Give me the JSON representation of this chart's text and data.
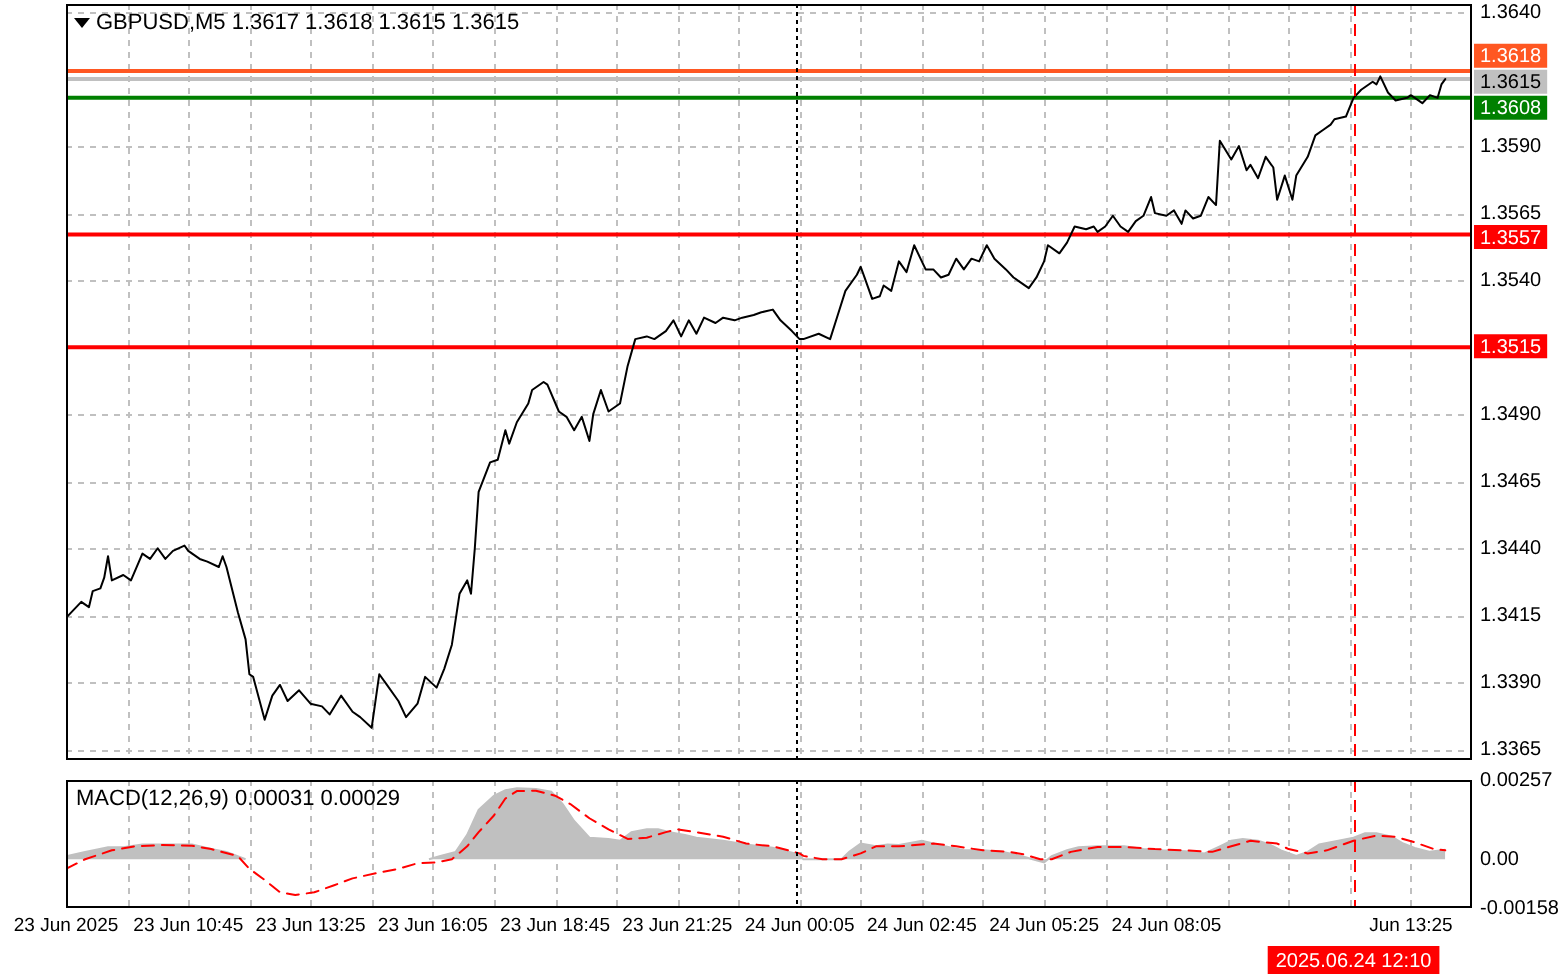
{
  "chart_data": [
    {
      "type": "line",
      "title": "GBPUSD,M5 1.3617 1.3618 1.3615 1.3615",
      "xlim": [
        "2025-06-23T08:05",
        "2025-06-24T14:45"
      ],
      "xticks": [
        {
          "value": "2025-06-23T08:05",
          "label": null
        },
        {
          "value": "2025-06-23T09:25",
          "label": null
        },
        {
          "value": "2025-06-23T10:45",
          "label": null
        },
        {
          "value": "2025-06-23T12:05",
          "label": null
        },
        {
          "value": "2025-06-23T13:25",
          "label": null
        },
        {
          "value": "2025-06-23T14:45",
          "label": null
        },
        {
          "value": "2025-06-23T16:05",
          "label": null
        },
        {
          "value": "2025-06-23T17:25",
          "label": null
        },
        {
          "value": "2025-06-23T18:45",
          "label": null
        },
        {
          "value": "2025-06-23T20:05",
          "label": null
        },
        {
          "value": "2025-06-23T21:25",
          "label": null
        },
        {
          "value": "2025-06-23T22:45",
          "label": null
        },
        {
          "value": "2025-06-24T00:05",
          "label": null
        },
        {
          "value": "2025-06-24T01:25",
          "label": null
        },
        {
          "value": "2025-06-24T02:45",
          "label": null
        },
        {
          "value": "2025-06-24T04:05",
          "label": null
        },
        {
          "value": "2025-06-24T05:25",
          "label": null
        },
        {
          "value": "2025-06-24T06:45",
          "label": null
        },
        {
          "value": "2025-06-24T08:05",
          "label": null
        },
        {
          "value": "2025-06-24T09:25",
          "label": null
        },
        {
          "value": "2025-06-24T10:45",
          "label": null
        },
        {
          "value": "2025-06-24T12:05",
          "label": null
        },
        {
          "value": "2025-06-24T13:25",
          "label": null
        }
      ],
      "ylim": [
        1.3361,
        1.3643
      ],
      "yticks": [
        {
          "value": 1.364,
          "label": "1.3640"
        },
        {
          "value": 1.359,
          "label": "1.3590"
        },
        {
          "value": 1.3565,
          "label": "1.3565"
        },
        {
          "value": 1.354,
          "label": "1.3540"
        },
        {
          "value": 1.349,
          "label": "1.3490"
        },
        {
          "value": 1.3465,
          "label": "1.3465"
        },
        {
          "value": 1.344,
          "label": "1.3440"
        },
        {
          "value": 1.3415,
          "label": "1.3415"
        },
        {
          "value": 1.339,
          "label": "1.3390"
        },
        {
          "value": 1.3365,
          "label": "1.3365"
        }
      ],
      "grid": true,
      "tick_labels": "y",
      "series": [
        {
          "color": "#000000",
          "x": [
            "2025-06-23T08:05",
            "2025-06-23T08:15",
            "2025-06-23T08:25",
            "2025-06-23T08:35",
            "2025-06-23T08:40",
            "2025-06-23T08:50",
            "2025-06-23T08:55",
            "2025-06-23T09:00",
            "2025-06-23T09:05",
            "2025-06-23T09:20",
            "2025-06-23T09:30",
            "2025-06-23T09:45",
            "2025-06-23T09:55",
            "2025-06-23T10:05",
            "2025-06-23T10:15",
            "2025-06-23T10:25",
            "2025-06-23T10:40",
            "2025-06-23T10:45",
            "2025-06-23T11:00",
            "2025-06-23T11:10",
            "2025-06-23T11:25",
            "2025-06-23T11:30",
            "2025-06-23T11:35",
            "2025-06-23T11:50",
            "2025-06-23T12:00",
            "2025-06-23T12:05",
            "2025-06-23T12:10",
            "2025-06-23T12:25",
            "2025-06-23T12:35",
            "2025-06-23T12:45",
            "2025-06-23T12:55",
            "2025-06-23T13:10",
            "2025-06-23T13:25",
            "2025-06-23T13:40",
            "2025-06-23T13:50",
            "2025-06-23T14:05",
            "2025-06-23T14:20",
            "2025-06-23T14:30",
            "2025-06-23T14:45",
            "2025-06-23T14:55",
            "2025-06-23T15:05",
            "2025-06-23T15:20",
            "2025-06-23T15:30",
            "2025-06-23T15:45",
            "2025-06-23T15:55",
            "2025-06-23T16:10",
            "2025-06-23T16:20",
            "2025-06-23T16:30",
            "2025-06-23T16:40",
            "2025-06-23T16:50",
            "2025-06-23T16:55",
            "2025-06-23T17:00",
            "2025-06-23T17:05",
            "2025-06-23T17:20",
            "2025-06-23T17:30",
            "2025-06-23T17:40",
            "2025-06-23T17:45",
            "2025-06-23T17:55",
            "2025-06-23T18:10",
            "2025-06-23T18:15",
            "2025-06-23T18:30",
            "2025-06-23T18:35",
            "2025-06-23T18:50",
            "2025-06-23T19:00",
            "2025-06-23T19:10",
            "2025-06-23T19:20",
            "2025-06-23T19:30",
            "2025-06-23T19:35",
            "2025-06-23T19:45",
            "2025-06-23T19:55",
            "2025-06-23T20:10",
            "2025-06-23T20:20",
            "2025-06-23T20:30",
            "2025-06-23T20:45",
            "2025-06-23T20:55",
            "2025-06-23T21:10",
            "2025-06-23T21:20",
            "2025-06-23T21:30",
            "2025-06-23T21:40",
            "2025-06-23T21:50",
            "2025-06-23T22:00",
            "2025-06-23T22:15",
            "2025-06-23T22:25",
            "2025-06-23T22:40",
            "2025-06-23T22:50",
            "2025-06-23T23:05",
            "2025-06-23T23:15",
            "2025-06-23T23:30",
            "2025-06-23T23:40",
            "2025-06-23T23:55",
            "2025-06-24T00:05",
            "2025-06-24T00:10",
            "2025-06-24T00:30",
            "2025-06-24T00:45",
            "2025-06-24T00:55",
            "2025-06-24T01:05",
            "2025-06-24T01:20",
            "2025-06-24T01:25",
            "2025-06-24T01:30",
            "2025-06-24T01:40",
            "2025-06-24T01:50",
            "2025-06-24T01:55",
            "2025-06-24T02:05",
            "2025-06-24T02:15",
            "2025-06-24T02:25",
            "2025-06-24T02:35",
            "2025-06-24T02:50",
            "2025-06-24T03:00",
            "2025-06-24T03:10",
            "2025-06-24T03:20",
            "2025-06-24T03:30",
            "2025-06-24T03:40",
            "2025-06-24T03:50",
            "2025-06-24T04:00",
            "2025-06-24T04:10",
            "2025-06-24T04:20",
            "2025-06-24T04:35",
            "2025-06-24T04:45",
            "2025-06-24T05:05",
            "2025-06-24T05:15",
            "2025-06-24T05:25",
            "2025-06-24T05:30",
            "2025-06-24T05:45",
            "2025-06-24T05:55",
            "2025-06-24T06:05",
            "2025-06-24T06:20",
            "2025-06-24T06:30",
            "2025-06-24T06:35",
            "2025-06-24T06:45",
            "2025-06-24T06:55",
            "2025-06-24T07:05",
            "2025-06-24T07:15",
            "2025-06-24T07:25",
            "2025-06-24T07:35",
            "2025-06-24T07:45",
            "2025-06-24T07:50",
            "2025-06-24T08:05",
            "2025-06-24T08:15",
            "2025-06-24T08:25",
            "2025-06-24T08:30",
            "2025-06-24T08:40",
            "2025-06-24T08:50",
            "2025-06-24T09:00",
            "2025-06-24T09:10",
            "2025-06-24T09:15",
            "2025-06-24T09:30",
            "2025-06-24T09:40",
            "2025-06-24T09:50",
            "2025-06-24T09:55",
            "2025-06-24T10:05",
            "2025-06-24T10:15",
            "2025-06-24T10:25",
            "2025-06-24T10:30",
            "2025-06-24T10:40",
            "2025-06-24T10:50",
            "2025-06-24T10:55",
            "2025-06-24T11:10",
            "2025-06-24T11:20",
            "2025-06-24T11:30",
            "2025-06-24T11:40",
            "2025-06-24T11:45",
            "2025-06-24T12:00",
            "2025-06-24T12:10",
            "2025-06-24T12:20",
            "2025-06-24T12:35",
            "2025-06-24T12:40",
            "2025-06-24T12:45",
            "2025-06-24T12:55",
            "2025-06-24T13:05",
            "2025-06-24T13:20",
            "2025-06-24T13:25",
            "2025-06-24T13:40",
            "2025-06-24T13:50",
            "2025-06-24T14:00",
            "2025-06-24T14:05",
            "2025-06-24T14:10"
          ],
          "values": [
            1.3414,
            1.3417,
            1.342,
            1.3418,
            1.3424,
            1.3425,
            1.3429,
            1.3437,
            1.3428,
            1.343,
            1.3428,
            1.3438,
            1.3436,
            1.344,
            1.3436,
            1.3439,
            1.3441,
            1.3439,
            1.3436,
            1.3435,
            1.3433,
            1.3437,
            1.3433,
            1.3416,
            1.3406,
            1.3393,
            1.3392,
            1.3376,
            1.3385,
            1.3389,
            1.3383,
            1.3387,
            1.3382,
            1.3381,
            1.3378,
            1.3385,
            1.3379,
            1.3377,
            1.3373,
            1.3393,
            1.3389,
            1.3383,
            1.3377,
            1.3382,
            1.3392,
            1.3388,
            1.3395,
            1.3404,
            1.3423,
            1.3428,
            1.3423,
            1.344,
            1.3461,
            1.3472,
            1.3473,
            1.3484,
            1.3479,
            1.3487,
            1.3494,
            1.3499,
            1.3502,
            1.3501,
            1.3491,
            1.3489,
            1.3484,
            1.3489,
            1.348,
            1.349,
            1.3499,
            1.3491,
            1.3494,
            1.3508,
            1.3518,
            1.3519,
            1.3518,
            1.3521,
            1.3525,
            1.3519,
            1.3525,
            1.352,
            1.3526,
            1.3524,
            1.3526,
            1.3525,
            1.3526,
            1.3527,
            1.3528,
            1.3529,
            1.3525,
            1.3521,
            1.3518,
            1.3518,
            1.352,
            1.3518,
            1.3527,
            1.3536,
            1.3542,
            1.3545,
            1.3541,
            1.3533,
            1.3534,
            1.3538,
            1.3536,
            1.3547,
            1.3543,
            1.3553,
            1.3544,
            1.3544,
            1.3541,
            1.3542,
            1.3548,
            1.3544,
            1.3548,
            1.3547,
            1.3553,
            1.3548,
            1.3544,
            1.3541,
            1.3537,
            1.3541,
            1.3547,
            1.3553,
            1.355,
            1.3554,
            1.356,
            1.3559,
            1.356,
            1.3558,
            1.356,
            1.3564,
            1.356,
            1.3558,
            1.3562,
            1.3564,
            1.3571,
            1.3565,
            1.3564,
            1.3566,
            1.3561,
            1.3566,
            1.3563,
            1.3564,
            1.3571,
            1.3568,
            1.3592,
            1.3585,
            1.359,
            1.3581,
            1.3583,
            1.3578,
            1.3586,
            1.3582,
            1.357,
            1.3579,
            1.357,
            1.3579,
            1.3586,
            1.3594,
            1.3596,
            1.3598,
            1.36,
            1.3601,
            1.3608,
            1.3611,
            1.3614,
            1.3613,
            1.3616,
            1.361,
            1.3607,
            1.3608,
            1.3609,
            1.3606,
            1.3609,
            1.3608,
            1.3613,
            1.3615
          ]
        }
      ],
      "ref_lines": [
        {
          "axis": "y",
          "value": 1.3618,
          "label": "1.3618",
          "color": "#ff5722"
        },
        {
          "axis": "y",
          "value": 1.3615,
          "label": "1.3615",
          "color": "#c0c0c0"
        },
        {
          "axis": "y",
          "value": 1.3608,
          "label": "1.3608",
          "color": "#008000"
        },
        {
          "axis": "y",
          "value": 1.3557,
          "label": "1.3557",
          "color": "#ff0000"
        },
        {
          "axis": "y",
          "value": 1.3515,
          "label": "1.3515",
          "color": "#ff0000"
        },
        {
          "axis": "x",
          "value": "2025-06-24T00:00",
          "color": "#000000",
          "line_style": "dotted"
        },
        {
          "axis": "x",
          "value": "2025-06-24T12:10",
          "color": "#ff0000",
          "line_style": "dashed"
        }
      ]
    },
    {
      "type": "line",
      "title": "MACD(12,26,9) 0.00031 0.00029",
      "xlim": [
        "2025-06-23T08:05",
        "2025-06-24T14:45"
      ],
      "xticks": [
        {
          "value": "2025-06-23T08:05",
          "label": "23 Jun 2025"
        },
        {
          "value": "2025-06-23T09:25",
          "label": null
        },
        {
          "value": "2025-06-23T10:45",
          "label": "23 Jun 10:45"
        },
        {
          "value": "2025-06-23T12:05",
          "label": null
        },
        {
          "value": "2025-06-23T13:25",
          "label": "23 Jun 13:25"
        },
        {
          "value": "2025-06-23T14:45",
          "label": null
        },
        {
          "value": "2025-06-23T16:05",
          "label": "23 Jun 16:05"
        },
        {
          "value": "2025-06-23T17:25",
          "label": null
        },
        {
          "value": "2025-06-23T18:45",
          "label": "23 Jun 18:45"
        },
        {
          "value": "2025-06-23T20:05",
          "label": null
        },
        {
          "value": "2025-06-23T21:25",
          "label": "23 Jun 21:25"
        },
        {
          "value": "2025-06-23T22:45",
          "label": null
        },
        {
          "value": "2025-06-24T00:05",
          "label": "24 Jun 00:05"
        },
        {
          "value": "2025-06-24T01:25",
          "label": null
        },
        {
          "value": "2025-06-24T02:45",
          "label": "24 Jun 02:45"
        },
        {
          "value": "2025-06-24T04:05",
          "label": null
        },
        {
          "value": "2025-06-24T05:25",
          "label": "24 Jun 05:25"
        },
        {
          "value": "2025-06-24T06:45",
          "label": null
        },
        {
          "value": "2025-06-24T08:05",
          "label": "24 Jun 08:05"
        },
        {
          "value": "2025-06-24T09:25",
          "label": null
        },
        {
          "value": "2025-06-24T10:45",
          "label": null
        },
        {
          "value": "2025-06-24T12:05",
          "label": null
        },
        {
          "value": "2025-06-24T13:25",
          "label": "Jun 13:25"
        }
      ],
      "ylim": [
        -0.00158,
        0.00257
      ],
      "yticks": [
        0.00257,
        {
          "value": 0,
          "label": "0.00"
        },
        -0.00158
      ],
      "grid": "x",
      "series": [
        {
          "type": "area",
          "color": "#c0c0c0",
          "x": [
            "2025-06-23T08:05",
            "2025-06-23T08:30",
            "2025-06-23T09:00",
            "2025-06-23T09:20",
            "2025-06-23T09:45",
            "2025-06-23T10:10",
            "2025-06-23T10:35",
            "2025-06-23T10:50",
            "2025-06-23T11:15",
            "2025-06-23T11:35",
            "2025-06-23T12:00",
            "2025-06-23T12:05",
            "2025-06-23T12:20",
            "2025-06-23T12:30",
            "2025-06-23T12:50",
            "2025-06-23T13:05",
            "2025-06-23T13:30",
            "2025-06-23T13:55",
            "2025-06-23T14:20",
            "2025-06-23T14:45",
            "2025-06-23T15:10",
            "2025-06-23T15:35",
            "2025-06-23T16:00",
            "2025-06-23T16:15",
            "2025-06-23T16:35",
            "2025-06-23T16:50",
            "2025-06-23T17:05",
            "2025-06-23T17:25",
            "2025-06-23T17:40",
            "2025-06-23T17:55",
            "2025-06-23T18:20",
            "2025-06-23T18:40",
            "2025-06-23T18:55",
            "2025-06-23T19:10",
            "2025-06-23T19:30",
            "2025-06-23T19:55",
            "2025-06-23T20:10",
            "2025-06-23T20:25",
            "2025-06-23T20:45",
            "2025-06-23T21:00",
            "2025-06-23T21:15",
            "2025-06-23T21:35",
            "2025-06-23T21:50",
            "2025-06-23T22:25",
            "2025-06-23T22:55",
            "2025-06-23T23:30",
            "2025-06-24T00:05",
            "2025-06-24T00:10",
            "2025-06-24T00:35",
            "2025-06-24T01:00",
            "2025-06-24T01:10",
            "2025-06-24T01:25",
            "2025-06-24T01:45",
            "2025-06-24T02:00",
            "2025-06-24T02:15",
            "2025-06-24T02:35",
            "2025-06-24T02:45",
            "2025-06-24T03:00",
            "2025-06-24T03:15",
            "2025-06-24T03:40",
            "2025-06-24T04:05",
            "2025-06-24T04:30",
            "2025-06-24T04:55",
            "2025-06-24T05:10",
            "2025-06-24T05:25",
            "2025-06-24T05:35",
            "2025-06-24T05:55",
            "2025-06-24T06:10",
            "2025-06-24T06:35",
            "2025-06-24T07:10",
            "2025-06-24T07:35",
            "2025-06-24T08:00",
            "2025-06-24T08:30",
            "2025-06-24T08:55",
            "2025-06-24T09:15",
            "2025-06-24T09:30",
            "2025-06-24T09:45",
            "2025-06-24T10:05",
            "2025-06-24T10:20",
            "2025-06-24T10:35",
            "2025-06-24T10:55",
            "2025-06-24T11:10",
            "2025-06-24T11:25",
            "2025-06-24T11:50",
            "2025-06-24T12:10",
            "2025-06-24T12:25",
            "2025-06-24T12:40",
            "2025-06-24T13:00",
            "2025-06-24T13:15",
            "2025-06-24T13:30",
            "2025-06-24T13:50",
            "2025-06-24T14:10"
          ],
          "values": [
            0.0001,
            0.00024,
            0.00039,
            0.00039,
            0.00048,
            0.00048,
            0.00048,
            0.00048,
            0.00033,
            0.00024,
            0,
            null,
            null,
            null,
            null,
            null,
            null,
            null,
            null,
            null,
            null,
            null,
            0,
            0.00011,
            0.00024,
            0.00079,
            0.0016,
            0.00206,
            0.00224,
            0.0023,
            0.00228,
            0.00219,
            0.00179,
            0.00124,
            0.0007,
            0.00066,
            0.0006,
            0.00088,
            0.00097,
            0.00097,
            0.00088,
            0.00079,
            0.0007,
            0.0006,
            0.00048,
            0.00037,
            0.00015,
            0,
            0,
            0,
            0.00024,
            0.00051,
            0.00042,
            0.00048,
            0.00046,
            0.00055,
            0.0006,
            0.00051,
            0.00042,
            0.00029,
            0.00029,
            0.00024,
            0.00011,
            0,
            -0.0001,
            0.0001,
            0.00029,
            0.00039,
            0.00042,
            0.00042,
            0.00033,
            0.00029,
            0.00026,
            0.00019,
            0.00042,
            0.0006,
            0.00066,
            0.0006,
            0.00048,
            0.00029,
            0.00011,
            0.00024,
            0.00048,
            0.0006,
            0.0007,
            0.00084,
            0.00084,
            0.00073,
            0.00051,
            0.00037,
            0.00024,
            0.00031
          ]
        },
        {
          "color": "#ff0000",
          "line_style": "dashed",
          "x": [
            "2025-06-23T08:05",
            "2025-06-23T08:30",
            "2025-06-23T09:05",
            "2025-06-23T09:35",
            "2025-06-23T10:10",
            "2025-06-23T10:50",
            "2025-06-23T11:15",
            "2025-06-23T11:50",
            "2025-06-23T12:05",
            "2025-06-23T12:25",
            "2025-06-23T12:45",
            "2025-06-23T13:05",
            "2025-06-23T13:30",
            "2025-06-23T13:55",
            "2025-06-23T14:20",
            "2025-06-23T14:55",
            "2025-06-23T15:20",
            "2025-06-23T15:45",
            "2025-06-23T16:10",
            "2025-06-23T16:30",
            "2025-06-23T16:50",
            "2025-06-23T17:05",
            "2025-06-23T17:25",
            "2025-06-23T17:40",
            "2025-06-23T17:55",
            "2025-06-23T18:20",
            "2025-06-23T18:45",
            "2025-06-23T19:05",
            "2025-06-23T19:30",
            "2025-06-23T19:55",
            "2025-06-23T20:20",
            "2025-06-23T20:45",
            "2025-06-23T21:10",
            "2025-06-23T21:25",
            "2025-06-23T21:50",
            "2025-06-23T22:25",
            "2025-06-23T22:55",
            "2025-06-23T23:30",
            "2025-06-24T00:05",
            "2025-06-24T00:10",
            "2025-06-24T00:35",
            "2025-06-24T01:00",
            "2025-06-24T01:25",
            "2025-06-24T01:45",
            "2025-06-24T02:15",
            "2025-06-24T03:00",
            "2025-06-24T03:30",
            "2025-06-24T04:05",
            "2025-06-24T04:40",
            "2025-06-24T05:00",
            "2025-06-24T05:20",
            "2025-06-24T05:35",
            "2025-06-24T06:00",
            "2025-06-24T06:35",
            "2025-06-24T07:10",
            "2025-06-24T07:50",
            "2025-06-24T08:30",
            "2025-06-24T09:05",
            "2025-06-24T09:30",
            "2025-06-24T09:55",
            "2025-06-24T10:30",
            "2025-06-24T10:45",
            "2025-06-24T11:10",
            "2025-06-24T11:35",
            "2025-06-24T12:10",
            "2025-06-24T12:40",
            "2025-06-24T13:05",
            "2025-06-24T13:30",
            "2025-06-24T13:55",
            "2025-06-24T14:10"
          ],
          "values": [
            -0.00031,
            0,
            0.00029,
            0.00042,
            0.00046,
            0.00044,
            0.00033,
            0.0001,
            -0.00031,
            -0.00067,
            -0.00107,
            -0.00116,
            -0.00107,
            -0.00085,
            -0.00062,
            -0.00043,
            -0.00031,
            -0.00013,
            -0.0001,
            0,
            0.00042,
            0.00088,
            0.00142,
            0.00197,
            0.00221,
            0.00222,
            0.00206,
            0.00179,
            0.00133,
            0.00097,
            0.00066,
            0.0007,
            0.00088,
            0.00097,
            0.00088,
            0.00073,
            0.00051,
            0.00042,
            0.00019,
            0.00011,
            0,
            0,
            0.00019,
            0.00042,
            0.00042,
            0.00051,
            0.00042,
            0.00029,
            0.00024,
            0.00015,
            0,
            0,
            0.00024,
            0.0004,
            0.0004,
            0.00033,
            0.00029,
            0.00024,
            0.00042,
            0.0006,
            0.00051,
            0.00033,
            0.00019,
            0.00029,
            0.0006,
            0.00077,
            0.00073,
            0.00055,
            0.00033,
            0.00029
          ]
        }
      ],
      "ref_lines": [
        {
          "axis": "x",
          "value": "2025-06-24T00:00",
          "color": "#000000",
          "line_style": "dotted"
        },
        {
          "axis": "x",
          "value": "2025-06-24T12:10",
          "label": "2025.06.24 12:10",
          "color": "#ff0000",
          "line_style": "dashed"
        }
      ]
    }
  ]
}
